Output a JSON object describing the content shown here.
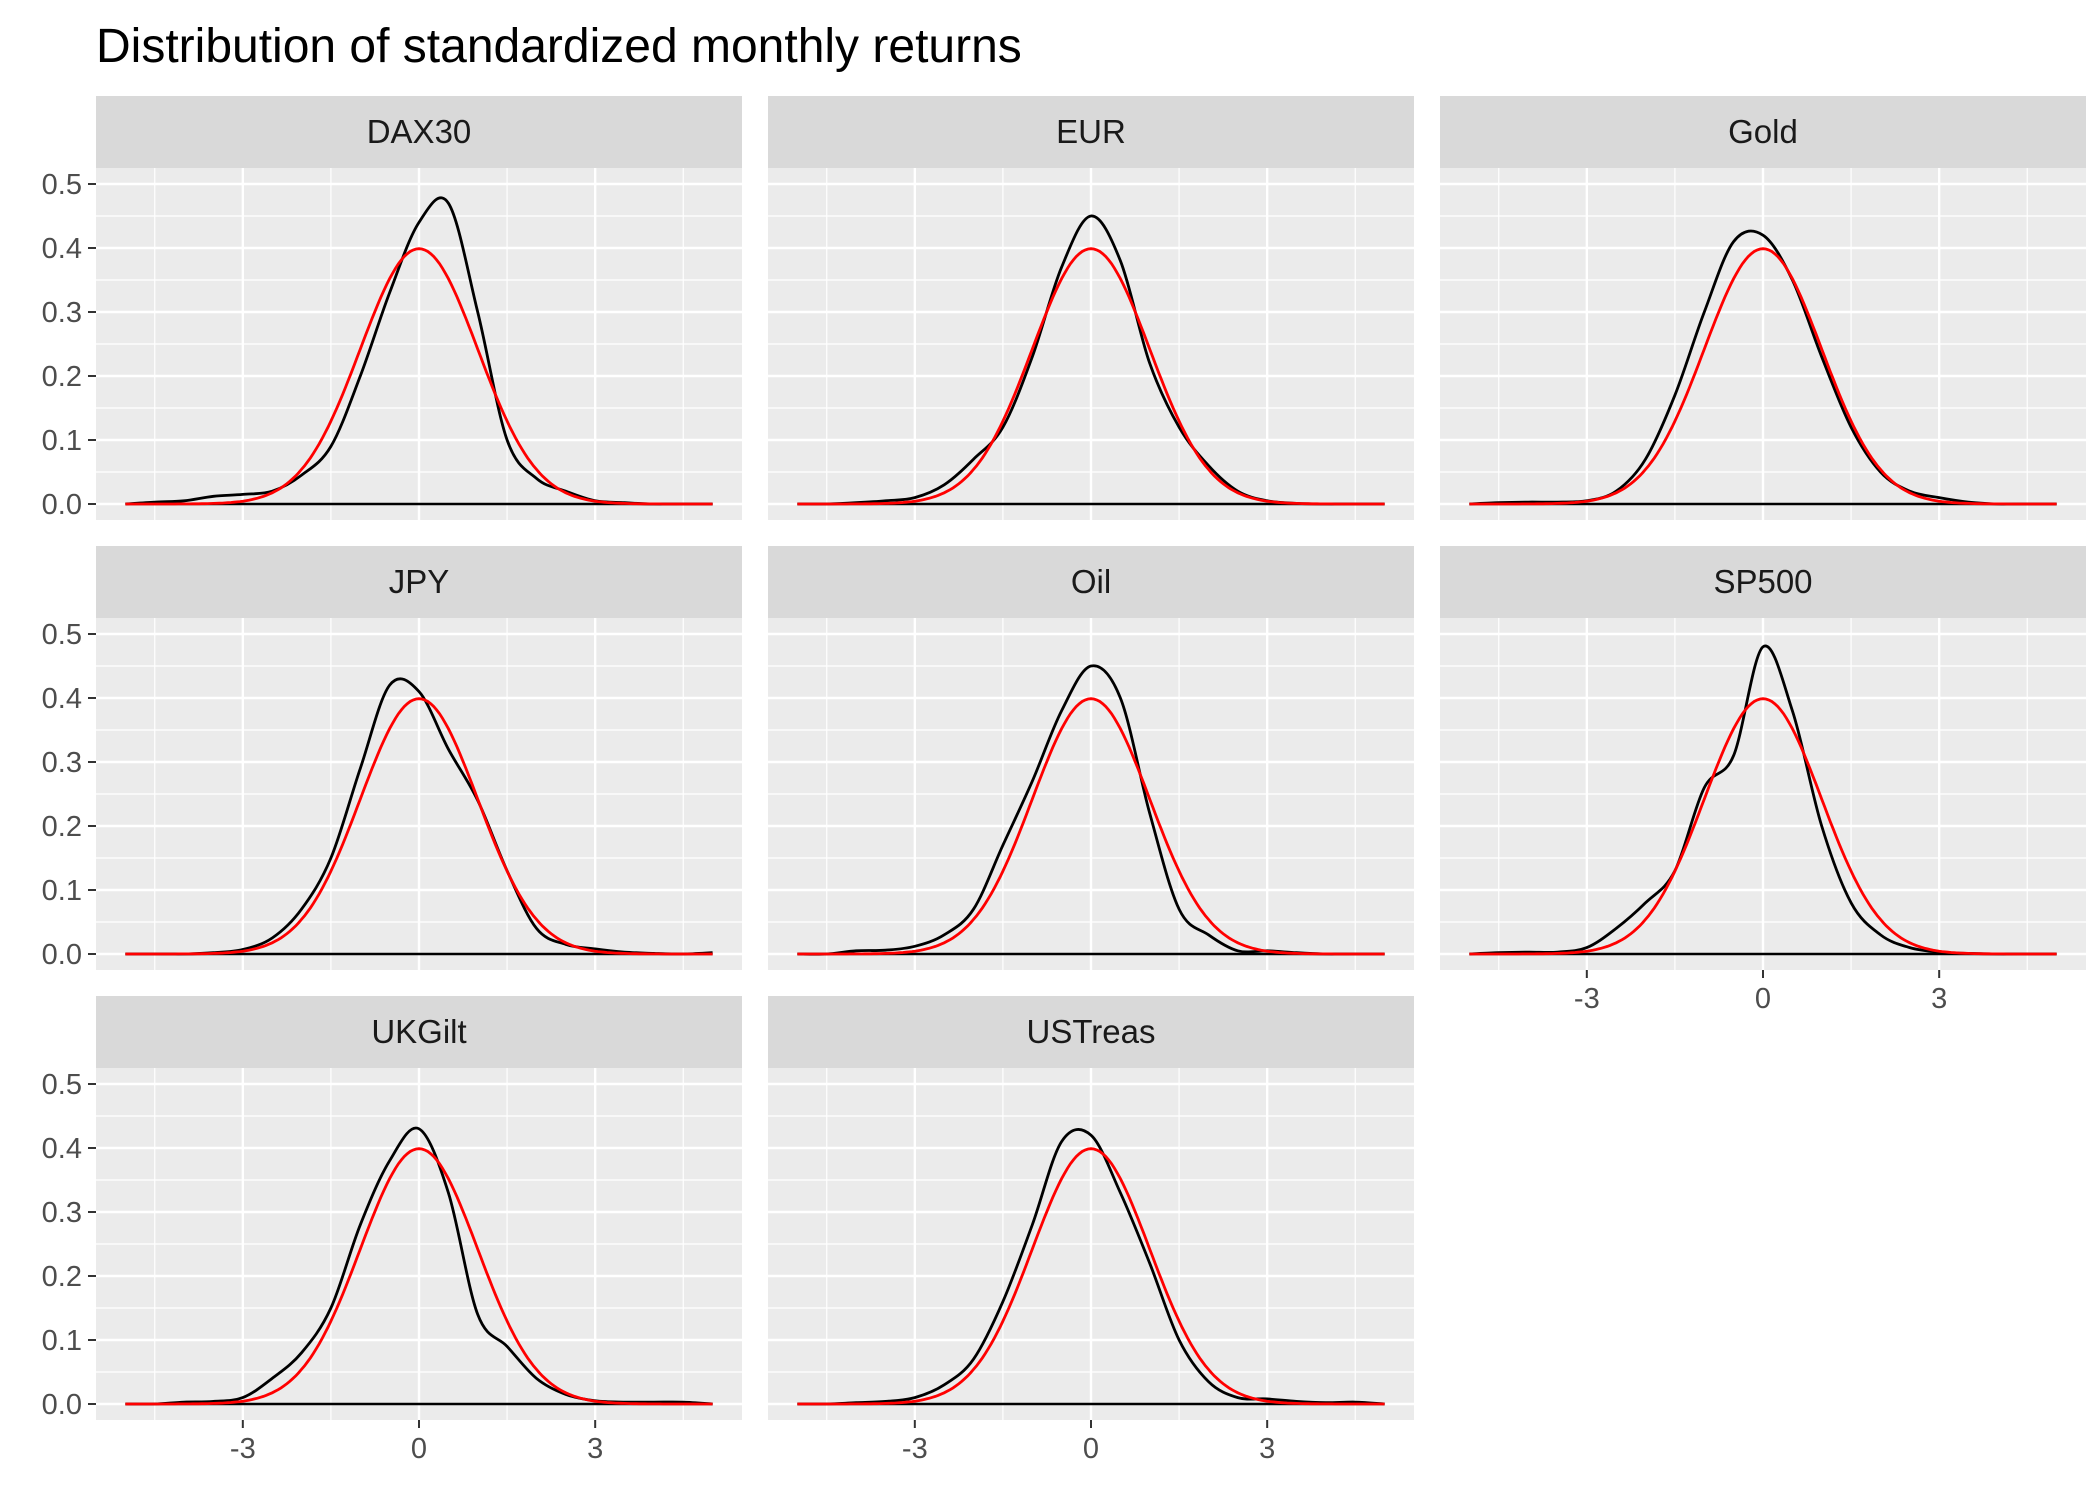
{
  "chart_data": {
    "type": "line",
    "title": "Distribution of standardized monthly returns",
    "xlabel": "",
    "ylabel": "",
    "xlim": [
      -5.0,
      5.0
    ],
    "ylim": [
      0,
      0.5
    ],
    "x_ticks": [
      "-3",
      "0",
      "3"
    ],
    "y_ticks": [
      "0.0",
      "0.1",
      "0.2",
      "0.3",
      "0.4",
      "0.5"
    ],
    "grid": true,
    "colors": {
      "empirical": "#000000",
      "normal": "#ff0000",
      "panel_bg": "#ebebeb",
      "strip_bg": "#d9d9d9",
      "grid": "#ffffff"
    },
    "reference_curve": {
      "kind": "standard-normal-density",
      "mean": 0,
      "sd": 1
    },
    "x": [
      -5,
      -4.5,
      -4,
      -3.5,
      -3,
      -2.5,
      -2,
      -1.5,
      -1,
      -0.5,
      0,
      0.5,
      1,
      1.5,
      2,
      2.5,
      3,
      3.5,
      4,
      4.5,
      5
    ],
    "panels": [
      {
        "label": "DAX30",
        "density": [
          0,
          0.003,
          0.005,
          0.012,
          0.015,
          0.02,
          0.045,
          0.09,
          0.2,
          0.33,
          0.44,
          0.47,
          0.3,
          0.1,
          0.04,
          0.02,
          0.005,
          0.002,
          0,
          0,
          0
        ]
      },
      {
        "label": "EUR",
        "density": [
          0,
          0,
          0.002,
          0.005,
          0.01,
          0.03,
          0.07,
          0.12,
          0.23,
          0.37,
          0.45,
          0.38,
          0.22,
          0.12,
          0.06,
          0.02,
          0.005,
          0.001,
          0,
          0,
          0
        ]
      },
      {
        "label": "Gold",
        "density": [
          0,
          0.002,
          0.003,
          0.003,
          0.005,
          0.02,
          0.07,
          0.17,
          0.3,
          0.41,
          0.42,
          0.35,
          0.23,
          0.12,
          0.05,
          0.02,
          0.01,
          0.003,
          0,
          0,
          0
        ]
      },
      {
        "label": "JPY",
        "density": [
          0,
          0,
          0,
          0.002,
          0.007,
          0.025,
          0.07,
          0.15,
          0.29,
          0.42,
          0.41,
          0.32,
          0.24,
          0.13,
          0.04,
          0.015,
          0.008,
          0.003,
          0.001,
          0,
          0.002
        ]
      },
      {
        "label": "Oil",
        "density": [
          0,
          0,
          0.005,
          0.006,
          0.012,
          0.03,
          0.07,
          0.17,
          0.27,
          0.38,
          0.45,
          0.4,
          0.22,
          0.07,
          0.03,
          0.005,
          0.005,
          0.002,
          0,
          0,
          0
        ]
      },
      {
        "label": "SP500",
        "density": [
          0,
          0.002,
          0.003,
          0.003,
          0.01,
          0.04,
          0.08,
          0.13,
          0.26,
          0.31,
          0.48,
          0.38,
          0.2,
          0.08,
          0.03,
          0.01,
          0.003,
          0.001,
          0,
          0,
          0
        ]
      },
      {
        "label": "UKGilt",
        "density": [
          0,
          0,
          0.003,
          0.004,
          0.01,
          0.04,
          0.08,
          0.15,
          0.28,
          0.38,
          0.43,
          0.33,
          0.14,
          0.09,
          0.04,
          0.015,
          0.005,
          0.003,
          0.003,
          0.003,
          0
        ]
      },
      {
        "label": "USTreas",
        "density": [
          0,
          0,
          0.002,
          0.004,
          0.01,
          0.03,
          0.07,
          0.16,
          0.28,
          0.41,
          0.42,
          0.33,
          0.22,
          0.1,
          0.035,
          0.01,
          0.008,
          0.004,
          0.002,
          0.003,
          0
        ]
      }
    ]
  }
}
